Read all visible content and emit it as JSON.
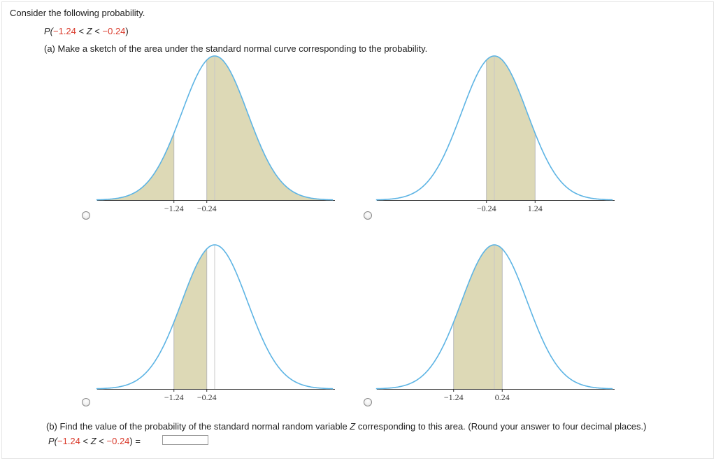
{
  "question": {
    "intro": "Consider the following probability.",
    "prob": {
      "p": "P(",
      "lo": "−1.24",
      "lt1": " < ",
      "z": "Z",
      "lt2": " < ",
      "hi": "−0.24",
      "close": ")"
    },
    "part_a": "(a) Make a sketch of the area under the standard normal curve corresponding to the probability.",
    "part_b": {
      "text_before": "(b) Find the value of the probability of the standard normal random variable ",
      "z": "Z",
      "text_after": " corresponding to this area. (Round your answer to four decimal places.)"
    },
    "answer_prob": {
      "p": "P(",
      "lo": "−1.24",
      "lt1": " < ",
      "z": "Z",
      "lt2": " < ",
      "hi": "−0.24",
      "close": ")",
      "eq": " ="
    },
    "answer_value": ""
  },
  "colors": {
    "curve": "#5db4e4",
    "fill": "#ddd9b6",
    "axis": "#333333",
    "label_red": "#d93a2b"
  },
  "chart_data": [
    {
      "type": "area",
      "option": "top-left",
      "shaded": [
        [
          -3.6,
          -1.24
        ],
        [
          -0.24,
          3.6
        ]
      ],
      "ticks": [
        {
          "value": -1.24,
          "label": "−1.24"
        },
        {
          "value": -0.24,
          "label": "−0.24"
        }
      ]
    },
    {
      "type": "area",
      "option": "top-right",
      "shaded": [
        [
          -0.24,
          1.24
        ]
      ],
      "ticks": [
        {
          "value": -0.24,
          "label": "−0.24"
        },
        {
          "value": 1.24,
          "label": "1.24"
        }
      ]
    },
    {
      "type": "area",
      "option": "bottom-left",
      "shaded": [
        [
          -1.24,
          -0.24
        ]
      ],
      "ticks": [
        {
          "value": -1.24,
          "label": "−1.24"
        },
        {
          "value": -0.24,
          "label": "−0.24"
        }
      ]
    },
    {
      "type": "area",
      "option": "bottom-right",
      "shaded": [
        [
          -1.24,
          0.24
        ]
      ],
      "ticks": [
        {
          "value": -1.24,
          "label": "−1.24"
        },
        {
          "value": 0.24,
          "label": "0.24"
        }
      ]
    }
  ]
}
